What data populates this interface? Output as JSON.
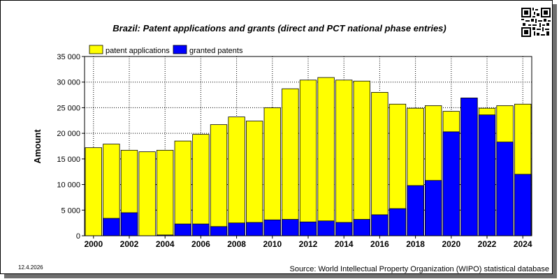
{
  "title": "Brazil: Patent applications and grants (direct and PCT national phase entries)",
  "footer": {
    "date": "12.4.2026",
    "source": "Source: World Intellectual Property Organization (WIPO) statistical database"
  },
  "colors": {
    "applications": "#ffff00",
    "grants": "#0000ff",
    "frame_shadow": "#6e6e6e"
  },
  "icons": {
    "qr": "qr-code-icon"
  },
  "chart_data": {
    "type": "bar",
    "stacking": "overlay",
    "categories": [
      "2000",
      "2001",
      "2002",
      "2003",
      "2004",
      "2005",
      "2006",
      "2007",
      "2008",
      "2009",
      "2010",
      "2011",
      "2012",
      "2013",
      "2014",
      "2015",
      "2016",
      "2017",
      "2018",
      "2019",
      "2020",
      "2021",
      "2022",
      "2023",
      "2024"
    ],
    "x_tick_labels": [
      "2000",
      "2002",
      "2004",
      "2006",
      "2008",
      "2010",
      "2012",
      "2014",
      "2016",
      "2018",
      "2020",
      "2022",
      "2024"
    ],
    "series": [
      {
        "name": "patent applications",
        "color": "#ffff00",
        "values": [
          17200,
          17900,
          16700,
          16400,
          16700,
          18500,
          19800,
          21700,
          23200,
          22400,
          25000,
          28700,
          30400,
          30900,
          30400,
          30200,
          28000,
          25700,
          24900,
          25400,
          24300,
          26900,
          24900,
          25400,
          25700
        ]
      },
      {
        "name": "granted patents",
        "color": "#0000ff",
        "values": [
          0,
          3400,
          4500,
          0,
          150,
          2300,
          2300,
          1800,
          2500,
          2600,
          3100,
          3200,
          2700,
          2900,
          2600,
          3200,
          4100,
          5300,
          9800,
          10800,
          20300,
          26900,
          23600,
          18300,
          12000
        ]
      }
    ],
    "ylabel": "Amount",
    "xlabel": "",
    "ylim": [
      0,
      35000
    ],
    "y_ticks": [
      0,
      5000,
      10000,
      15000,
      20000,
      25000,
      30000,
      35000
    ],
    "y_tick_labels": [
      "0",
      "5 000",
      "10 000",
      "15 000",
      "20 000",
      "25 000",
      "30 000",
      "35 000"
    ],
    "grid": true,
    "legend_position": "top-left"
  }
}
